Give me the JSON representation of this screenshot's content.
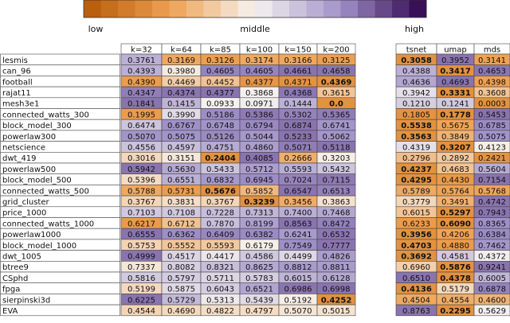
{
  "colorbar": {
    "labels": [
      "low",
      "middle",
      "high"
    ]
  },
  "table": {
    "columns": [
      "k=32",
      "k=64",
      "k=85",
      "k=100",
      "k=150",
      "k=200",
      "tsnet",
      "umap",
      "mds"
    ],
    "rows": [
      {
        "name": "lesmis",
        "values": [
          "0.3761",
          "0.3169",
          "0.3126",
          "0.3174",
          "0.3166",
          "0.3125",
          "0.3058",
          "0.3952",
          "0.3141"
        ],
        "bold": 6
      },
      {
        "name": "can_96",
        "values": [
          "0.4393",
          "0.3980",
          "0.4605",
          "0.4605",
          "0.4661",
          "0.4658",
          "0.4388",
          "0.3417",
          "0.4653"
        ],
        "bold": 7
      },
      {
        "name": "football",
        "values": [
          "0.4390",
          "0.4469",
          "0.4452",
          "0.4377",
          "0.4371",
          "0.4369",
          "0.4636",
          "0.4693",
          "0.4398"
        ],
        "bold": 5
      },
      {
        "name": "rajat11",
        "values": [
          "0.4347",
          "0.4374",
          "0.4377",
          "0.3868",
          "0.4368",
          "0.3615",
          "0.3942",
          "0.3331",
          "0.3608"
        ],
        "bold": 7
      },
      {
        "name": "mesh3e1",
        "values": [
          "0.1841",
          "0.1415",
          "0.0933",
          "0.0971",
          "0.1444",
          "0.0",
          "0.1210",
          "0.1241",
          "0.0003"
        ],
        "bold": 5
      },
      {
        "name": "connected_watts_300",
        "values": [
          "0.1995",
          "0.3990",
          "0.5186",
          "0.5386",
          "0.5302",
          "0.5365",
          "0.1805",
          "0.1778",
          "0.5453"
        ],
        "bold": 7
      },
      {
        "name": "block_model_300",
        "values": [
          "0.6474",
          "0.6767",
          "0.6748",
          "0.6794",
          "0.6874",
          "0.6741",
          "0.5538",
          "0.5675",
          "0.6785"
        ],
        "bold": 6
      },
      {
        "name": "powerlaw300",
        "values": [
          "0.5070",
          "0.5075",
          "0.5126",
          "0.5044",
          "0.5233",
          "0.5062",
          "0.3563",
          "0.3849",
          "0.5075"
        ],
        "bold": 6
      },
      {
        "name": "netscience",
        "values": [
          "0.4556",
          "0.4597",
          "0.4751",
          "0.4860",
          "0.5071",
          "0.5118",
          "0.4319",
          "0.3207",
          "0.4123"
        ],
        "bold": 7
      },
      {
        "name": "dwt_419",
        "values": [
          "0.3016",
          "0.3151",
          "0.2404",
          "0.4085",
          "0.2666",
          "0.3203",
          "0.2796",
          "0.2892",
          "0.2421"
        ],
        "bold": 2
      },
      {
        "name": "powerlaw500",
        "values": [
          "0.5942",
          "0.5630",
          "0.5433",
          "0.5712",
          "0.5593",
          "0.5432",
          "0.4237",
          "0.4683",
          "0.5604"
        ],
        "bold": 6
      },
      {
        "name": "block_model_500",
        "values": [
          "0.5396",
          "0.6551",
          "0.6832",
          "0.6945",
          "0.7024",
          "0.7115",
          "0.4295",
          "0.4430",
          "0.7154"
        ],
        "bold": 6
      },
      {
        "name": "connected_watts_500",
        "values": [
          "0.5788",
          "0.5731",
          "0.5676",
          "0.5852",
          "0.6547",
          "0.6513",
          "0.5789",
          "0.5764",
          "0.5768"
        ],
        "bold": 2
      },
      {
        "name": "grid_cluster",
        "values": [
          "0.3767",
          "0.3831",
          "0.3767",
          "0.3239",
          "0.3456",
          "0.3863",
          "0.3779",
          "0.3491",
          "0.4742"
        ],
        "bold": 3
      },
      {
        "name": "price_1000",
        "values": [
          "0.7103",
          "0.7108",
          "0.7228",
          "0.7313",
          "0.7400",
          "0.7468",
          "0.6015",
          "0.5297",
          "0.7943"
        ],
        "bold": 7
      },
      {
        "name": "connected_watts_1000",
        "values": [
          "0.6217",
          "0.6712",
          "0.7870",
          "0.8199",
          "0.8563",
          "0.8472",
          "0.6233",
          "0.6090",
          "0.8365"
        ],
        "bold": 7
      },
      {
        "name": "powerlaw1000",
        "values": [
          "0.6555",
          "0.6362",
          "0.6409",
          "0.6382",
          "0.6241",
          "0.6532",
          "0.3956",
          "0.4206",
          "0.6384"
        ],
        "bold": 6
      },
      {
        "name": "block_model_1000",
        "values": [
          "0.5753",
          "0.5552",
          "0.5593",
          "0.6179",
          "0.7549",
          "0.7777",
          "0.4703",
          "0.4880",
          "0.7462"
        ],
        "bold": 6
      },
      {
        "name": "dwt_1005",
        "values": [
          "0.4999",
          "0.4517",
          "0.4417",
          "0.4586",
          "0.4499",
          "0.4826",
          "0.3692",
          "0.4581",
          "0.4372"
        ],
        "bold": 6
      },
      {
        "name": "btree9",
        "values": [
          "0.7337",
          "0.8082",
          "0.8321",
          "0.8625",
          "0.8812",
          "0.8811",
          "0.6960",
          "0.5876",
          "0.9241"
        ],
        "bold": 7
      },
      {
        "name": "CSphd",
        "values": [
          "0.5816",
          "0.5797",
          "0.5711",
          "0.5783",
          "0.6015",
          "0.6128",
          "0.6510",
          "0.4378",
          "0.6005"
        ],
        "bold": 7
      },
      {
        "name": "fpga",
        "values": [
          "0.5199",
          "0.5875",
          "0.6043",
          "0.6521",
          "0.6986",
          "0.6998",
          "0.4136",
          "0.5179",
          "0.6878"
        ],
        "bold": 6
      },
      {
        "name": "sierpinski3d",
        "values": [
          "0.6225",
          "0.5729",
          "0.5313",
          "0.5439",
          "0.5192",
          "0.4252",
          "0.4504",
          "0.4554",
          "0.4600"
        ],
        "bold": 5
      },
      {
        "name": "EVA",
        "values": [
          "0.4544",
          "0.4690",
          "0.4822",
          "0.4797",
          "0.5070",
          "0.5015",
          "0.8763",
          "0.2295",
          "0.5629"
        ],
        "bold": 7
      }
    ]
  }
}
